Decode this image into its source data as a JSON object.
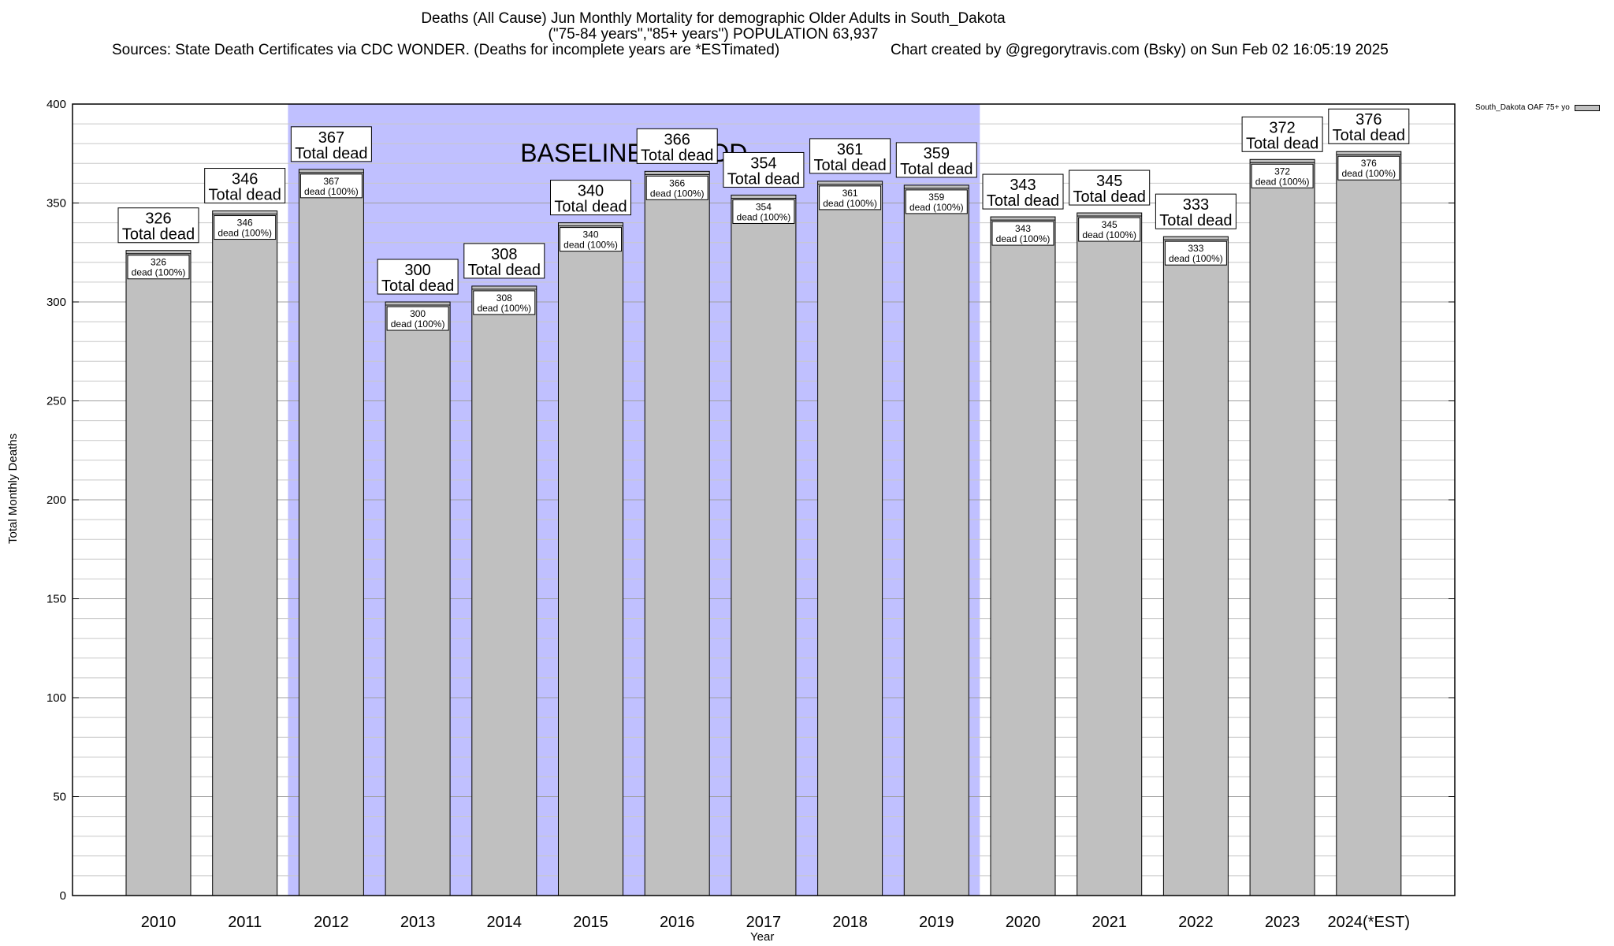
{
  "chart_data": {
    "type": "bar",
    "title": "Deaths (All Cause) Jun Monthly Mortality for demographic Older Adults in South_Dakota",
    "subtitle": "(\"75-84 years\",\"85+ years\") POPULATION 63,937",
    "source": "Sources: State Death Certificates via CDC WONDER. (Deaths for incomplete years are *ESTimated)",
    "credit": "Chart created by @gregorytravis.com (Bsky) on Sun Feb 02 16:05:19 2025",
    "xlabel": "Year",
    "ylabel": "Total Monthly Deaths",
    "ylim": [
      0,
      400
    ],
    "yticks": [
      0,
      50,
      100,
      150,
      200,
      250,
      300,
      350,
      400
    ],
    "grid": true,
    "legend_position": "top-right",
    "series": [
      {
        "name": "South_Dakota OAF 75+ yo",
        "values": [
          326,
          346,
          367,
          300,
          308,
          340,
          366,
          354,
          361,
          359,
          343,
          345,
          333,
          372,
          376
        ]
      }
    ],
    "categories": [
      "2010",
      "2011",
      "2012",
      "2013",
      "2014",
      "2015",
      "2016",
      "2017",
      "2018",
      "2019",
      "2020",
      "2021",
      "2022",
      "2023",
      "2024(*EST)"
    ],
    "outer_label_suffix": "Total dead",
    "inner_label_suffix": "dead (100%)",
    "baseline": {
      "label": "BASELINE PERIOD",
      "start": "2012",
      "end": "2019",
      "color": "#c0c0ff"
    },
    "bar_color": "#c0c0c0"
  }
}
